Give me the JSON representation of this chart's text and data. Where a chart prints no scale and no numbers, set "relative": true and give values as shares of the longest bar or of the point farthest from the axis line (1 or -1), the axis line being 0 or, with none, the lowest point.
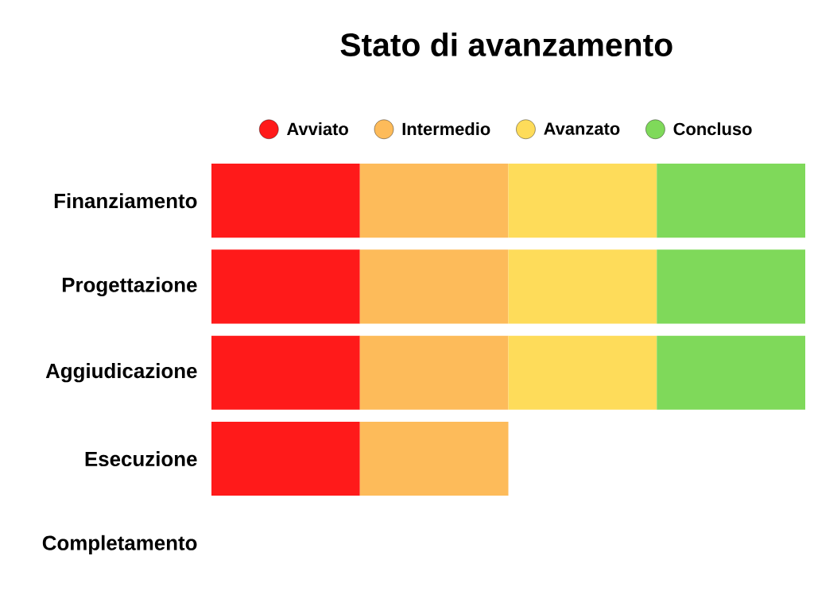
{
  "chart_data": {
    "type": "bar",
    "orientation": "horizontal",
    "stacked": true,
    "relative": true,
    "title": "Stato di avanzamento",
    "legend": "top",
    "categories": [
      "Finanziamento",
      "Progettazione",
      "Aggiudicazione",
      "Esecuzione",
      "Completamento"
    ],
    "series": [
      {
        "name": "Avviato",
        "color": "#ff1a1a",
        "values": [
          0.25,
          0.25,
          0.25,
          0.25,
          null
        ]
      },
      {
        "name": "Intermedio",
        "color": "#fdbb5a",
        "values": [
          0.25,
          0.25,
          0.25,
          0.25,
          null
        ]
      },
      {
        "name": "Avanzato",
        "color": "#fedc5a",
        "values": [
          0.25,
          0.25,
          0.25,
          null,
          null
        ]
      },
      {
        "name": "Concluso",
        "color": "#7fd95a",
        "values": [
          0.25,
          0.25,
          0.25,
          null,
          null
        ]
      }
    ]
  }
}
